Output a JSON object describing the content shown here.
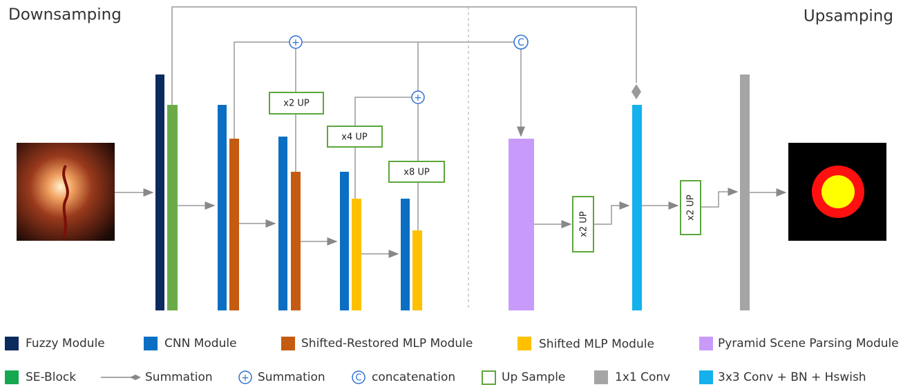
{
  "headings": {
    "left": "Downsamping",
    "right": "Upsamping"
  },
  "up_blocks": [
    {
      "label": "x2 UP"
    },
    {
      "label": "x4 UP"
    },
    {
      "label": "x8 UP"
    },
    {
      "label": "x2 UP"
    },
    {
      "label": "x2 UP"
    }
  ],
  "operators": [
    {
      "symbol": "+"
    },
    {
      "symbol": "+"
    },
    {
      "symbol": "C"
    }
  ],
  "legend": [
    {
      "label": "Fuzzy Module"
    },
    {
      "label": "CNN Module"
    },
    {
      "label": "Shifted-Restored MLP Module"
    },
    {
      "label": "Shifted MLP Module"
    },
    {
      "label": "Pyramid Scene Parsing Module"
    },
    {
      "label": "SE-Block"
    },
    {
      "label": "Summation"
    },
    {
      "label": "Summation",
      "symbol": "+"
    },
    {
      "label": "concatenation",
      "symbol": "C"
    },
    {
      "label": "Up Sample"
    },
    {
      "label": "1x1 Conv"
    },
    {
      "label": "3x3 Conv + BN + Hswish"
    }
  ]
}
